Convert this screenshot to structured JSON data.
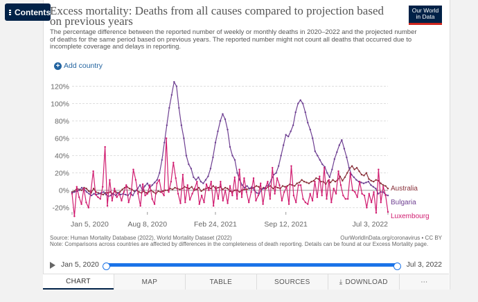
{
  "nav": {
    "contents_label": "Contents"
  },
  "header": {
    "title": "Excess mortality: Deaths from all causes compared to projection based on previous years",
    "subtitle": "The percentage difference between the reported number of weekly or monthly deaths in 2020–2022 and the projected number of deaths for the same period based on previous years. The reported number might not count all deaths that occurred due to incomplete coverage and delays in reporting.",
    "logo_line1": "Our World",
    "logo_line2": "in Data"
  },
  "controls": {
    "add_country_label": "Add country",
    "plus_glyph": "+"
  },
  "chart_data": {
    "type": "line",
    "ylim": [
      -25,
      130
    ],
    "y_ticks": [
      -20,
      0,
      20,
      40,
      60,
      80,
      100,
      120
    ],
    "y_tick_labels": [
      "-20%",
      "0%",
      "20%",
      "40%",
      "60%",
      "80%",
      "100%",
      "120%"
    ],
    "x_tick_labels": [
      "Jan 5, 2020",
      "Aug 8, 2020",
      "Feb 24, 2021",
      "Sep 12, 2021",
      "Jul 3, 2022"
    ],
    "x_ticks_week": [
      0,
      31,
      59,
      88,
      130
    ],
    "x_range_weeks": [
      0,
      130
    ],
    "grid": true,
    "series": [
      {
        "name": "Australia",
        "color": "#883039",
        "values": [
          -2,
          -1,
          2,
          1,
          0,
          3,
          2,
          -1,
          -3,
          2,
          -2,
          -3,
          -4,
          -5,
          -3,
          -3,
          -2,
          -4,
          -1,
          -3,
          -2,
          1,
          3,
          4,
          2,
          1,
          -1,
          0,
          -2,
          -3,
          -1,
          -3,
          -2,
          0,
          -2,
          -4,
          -1,
          -2,
          -1,
          0,
          0,
          2,
          1,
          3,
          2,
          1,
          2,
          4,
          3,
          2,
          4,
          0,
          1,
          3,
          -1,
          1,
          2,
          3,
          2,
          5,
          2,
          3,
          4,
          1,
          3,
          2,
          -1,
          -2,
          0,
          0,
          -2,
          0,
          1,
          1,
          2,
          2,
          3,
          5,
          4,
          1,
          3,
          2,
          4,
          5,
          2,
          4,
          3,
          2,
          5,
          4,
          5,
          7,
          6,
          5,
          8,
          9,
          12,
          10,
          9,
          8,
          10,
          11,
          14,
          13,
          10,
          10,
          7,
          11,
          9,
          12,
          10,
          12,
          16,
          11,
          15,
          20,
          25,
          28,
          24,
          26,
          22,
          18,
          17,
          20,
          13,
          11,
          10,
          12,
          11,
          8,
          6,
          5,
          2
        ]
      },
      {
        "name": "Bulgaria",
        "color": "#6d3e91",
        "values": [
          -3,
          -2,
          -1,
          0,
          3,
          1,
          -2,
          -4,
          -6,
          -4,
          -5,
          -4,
          -3,
          -2,
          -5,
          -7,
          -6,
          -4,
          -6,
          -3,
          -5,
          -4,
          -5,
          -6,
          -3,
          -6,
          -1,
          2,
          6,
          0,
          5,
          8,
          3,
          6,
          9,
          12,
          20,
          35,
          55,
          75,
          95,
          110,
          125,
          120,
          95,
          75,
          60,
          40,
          30,
          25,
          15,
          12,
          15,
          10,
          8,
          12,
          16,
          25,
          38,
          55,
          68,
          80,
          88,
          82,
          70,
          50,
          40,
          35,
          20,
          12,
          6,
          3,
          5,
          2,
          4,
          0,
          -3,
          -4,
          1,
          2,
          5,
          6,
          12,
          18,
          20,
          28,
          40,
          52,
          64,
          62,
          68,
          75,
          90,
          100,
          104,
          100,
          90,
          78,
          70,
          60,
          45,
          40,
          35,
          30,
          27,
          20,
          15,
          24,
          36,
          44,
          52,
          58,
          48,
          38,
          26,
          18,
          15,
          12,
          10,
          9,
          8,
          9,
          10,
          6,
          4,
          2,
          -4,
          -2,
          -2,
          -5,
          -6
        ]
      },
      {
        "name": "Luxembourg",
        "color": "#d01b6f",
        "values": [
          -4,
          -30,
          4,
          -8,
          -16,
          2,
          -14,
          -20,
          -1,
          22,
          -5,
          -8,
          -10,
          4,
          50,
          -18,
          12,
          -12,
          2,
          -8,
          -4,
          -12,
          -2,
          6,
          -14,
          -5,
          24,
          12,
          -4,
          -18,
          7,
          -6,
          -4,
          6,
          -10,
          -16,
          8,
          12,
          -2,
          -6,
          60,
          -2,
          10,
          32,
          14,
          -4,
          -15,
          18,
          -14,
          6,
          -11,
          -4,
          2,
          10,
          -16,
          -6,
          -14,
          7,
          0,
          10,
          -18,
          4,
          -10,
          10,
          -12,
          0,
          -15,
          5,
          -6,
          15,
          -10,
          24,
          -8,
          14,
          -2,
          -14,
          -2,
          14,
          -12,
          -6,
          8,
          -16,
          2,
          10,
          -10,
          26,
          -4,
          14,
          6,
          -12,
          -2,
          4,
          -16,
          28,
          -6,
          -14,
          6,
          6,
          -10,
          -14,
          -16,
          -4,
          -12,
          10,
          -8,
          16,
          -6,
          26,
          -10,
          12,
          -14,
          2,
          -4,
          22,
          6,
          -6,
          -10,
          -10,
          20,
          0,
          -2,
          -8,
          10,
          -4,
          -6,
          -20,
          -4,
          -14,
          -2,
          -26,
          24,
          -14,
          4,
          -6,
          -25
        ]
      }
    ]
  },
  "source": {
    "left": "Source: Human Mortality Database (2022), World Mortality Dataset (2022)",
    "right": "OurWorldInData.org/coronavirus • CC BY",
    "note": "Note: Comparisons across countries are affected by differences in the completeness of death reporting. Details can be found at our Excess Mortality page."
  },
  "timeline": {
    "start": "Jan 5, 2020",
    "end": "Jul 3, 2022"
  },
  "tabs": {
    "chart": "CHART",
    "map": "MAP",
    "table": "TABLE",
    "sources": "SOURCES",
    "download": "DOWNLOAD",
    "download_icon": "⤓",
    "share_icon": "⋯"
  }
}
